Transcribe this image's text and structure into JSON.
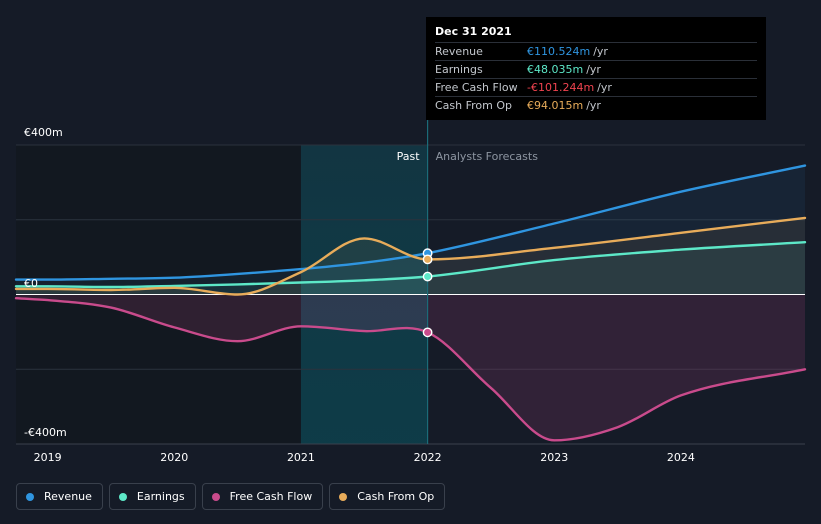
{
  "chart_data": {
    "type": "line",
    "title": "",
    "xlabel": "",
    "ylabel": "",
    "ylim": [
      -400,
      400
    ],
    "y_ticks": [
      {
        "value": 400,
        "label": "€400m"
      },
      {
        "value": 0,
        "label": "€0"
      },
      {
        "value": -400,
        "label": "-€400m"
      }
    ],
    "x_ticks": [
      "2019",
      "2020",
      "2021",
      "2022",
      "2023",
      "2024"
    ],
    "x_range": [
      2018.75,
      2024.98
    ],
    "regions": {
      "past_label": "Past",
      "forecast_label": "Analysts Forecasts",
      "highlight_range": [
        2021.0,
        2022.0
      ],
      "divider_x": 2022.0
    },
    "series": [
      {
        "name": "Revenue",
        "color": "#2f95e0",
        "x": [
          2018.75,
          2019.0,
          2019.5,
          2020.0,
          2020.5,
          2021.0,
          2021.5,
          2022.0,
          2023.0,
          2024.0,
          2024.98
        ],
        "values": [
          40,
          40,
          42,
          45,
          55,
          68,
          85,
          110.524,
          190,
          275,
          345
        ]
      },
      {
        "name": "Earnings",
        "color": "#5de8c8",
        "x": [
          2018.75,
          2019.0,
          2019.5,
          2020.0,
          2020.5,
          2021.0,
          2021.5,
          2022.0,
          2023.0,
          2024.0,
          2024.98
        ],
        "values": [
          22,
          22,
          20,
          23,
          27,
          32,
          38,
          48.035,
          92,
          120,
          140
        ]
      },
      {
        "name": "Free Cash Flow",
        "color": "#c94b8c",
        "x": [
          2018.75,
          2019.0,
          2019.5,
          2020.0,
          2020.5,
          2021.0,
          2021.5,
          2022.0,
          2022.5,
          2023.0,
          2023.5,
          2024.0,
          2024.98
        ],
        "values": [
          -10,
          -15,
          -35,
          -88,
          -125,
          -85,
          -98,
          -101.244,
          -250,
          -390,
          -355,
          -270,
          -200
        ]
      },
      {
        "name": "Cash From Op",
        "color": "#e8ac5a",
        "x": [
          2018.75,
          2019.0,
          2019.5,
          2020.0,
          2020.5,
          2021.0,
          2021.5,
          2022.0,
          2023.0,
          2024.0,
          2024.98
        ],
        "values": [
          15,
          15,
          12,
          18,
          0,
          60,
          150,
          94.015,
          125,
          165,
          205
        ]
      }
    ]
  },
  "tooltip": {
    "date": "Dec 31 2021",
    "rows": [
      {
        "label": "Revenue",
        "value": "€110.524m",
        "unit": "/yr",
        "color": "#2f95e0"
      },
      {
        "label": "Earnings",
        "value": "€48.035m",
        "unit": "/yr",
        "color": "#5de8c8"
      },
      {
        "label": "Free Cash Flow",
        "value": "-€101.244m",
        "unit": "/yr",
        "color": "#f0434f"
      },
      {
        "label": "Cash From Op",
        "value": "€94.015m",
        "unit": "/yr",
        "color": "#e8ac5a"
      }
    ]
  },
  "legend": [
    {
      "label": "Revenue",
      "color": "#2f95e0"
    },
    {
      "label": "Earnings",
      "color": "#5de8c8"
    },
    {
      "label": "Free Cash Flow",
      "color": "#c94b8c"
    },
    {
      "label": "Cash From Op",
      "color": "#e8ac5a"
    }
  ]
}
